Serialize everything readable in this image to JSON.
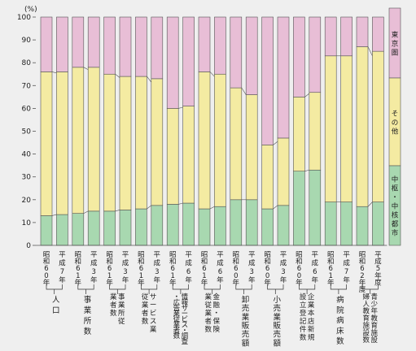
{
  "chart_data": {
    "type": "bar",
    "stacked": true,
    "percent": true,
    "unit_label": "(%)",
    "yticks": [
      0,
      10,
      20,
      30,
      40,
      50,
      60,
      70,
      80,
      90,
      100
    ],
    "ylim": [
      0,
      100
    ],
    "colors": {
      "中枢・中核都市": "#a8d8b0",
      "その他": "#f4eba2",
      "東京圏": "#e8bed6"
    },
    "bars": [
      {
        "label": "昭和60年",
        "values": [
          13,
          63,
          24
        ]
      },
      {
        "label": "平成7年",
        "values": [
          13.5,
          62.5,
          24
        ]
      },
      {
        "label": "昭和61年",
        "values": [
          14,
          64,
          22
        ]
      },
      {
        "label": "平成3年",
        "values": [
          15,
          63,
          22
        ]
      },
      {
        "label": "昭和61年",
        "values": [
          15,
          60,
          25
        ]
      },
      {
        "label": "平成3年",
        "values": [
          15.5,
          58.5,
          26
        ]
      },
      {
        "label": "昭和61年",
        "values": [
          16,
          58,
          26
        ]
      },
      {
        "label": "平成3年",
        "values": [
          17.5,
          55.5,
          27
        ]
      },
      {
        "label": "昭和61年",
        "values": [
          18,
          42,
          40
        ]
      },
      {
        "label": "平成6年",
        "values": [
          18.5,
          42.5,
          39
        ]
      },
      {
        "label": "昭和61年",
        "values": [
          16,
          60,
          24
        ]
      },
      {
        "label": "平成6年",
        "values": [
          17,
          58,
          25
        ]
      },
      {
        "label": "昭和60年",
        "values": [
          20,
          49,
          31
        ]
      },
      {
        "label": "平成3年",
        "values": [
          20,
          46,
          34
        ]
      },
      {
        "label": "昭和60年",
        "values": [
          16,
          28,
          56
        ]
      },
      {
        "label": "平成3年",
        "values": [
          17.5,
          29.5,
          53
        ]
      },
      {
        "label": "昭和60年",
        "values": [
          32.5,
          32.5,
          35
        ]
      },
      {
        "label": "平成6年",
        "values": [
          33,
          34,
          33
        ]
      },
      {
        "label": "昭和61年",
        "values": [
          19,
          64,
          17
        ]
      },
      {
        "label": "平成7年",
        "values": [
          19,
          64,
          17
        ]
      },
      {
        "label": "昭和62年度",
        "values": [
          17,
          70,
          13
        ]
      },
      {
        "label": "平成5年度",
        "values": [
          19,
          66,
          15
        ]
      }
    ],
    "groups": [
      {
        "label": "人口",
        "bars": [
          0,
          1
        ]
      },
      {
        "label": "事業所数",
        "bars": [
          2,
          3
        ]
      },
      {
        "label": "事業所従業者数",
        "bars": [
          4,
          5
        ]
      },
      {
        "label": "サービス業従業者数",
        "bars": [
          6,
          7
        ]
      },
      {
        "label": "情報サービス・調査・広告業従業者数",
        "bars": [
          8,
          9
        ]
      },
      {
        "label": "金融・保険業従業者数",
        "bars": [
          10,
          11
        ]
      },
      {
        "label": "卸売業販売額",
        "bars": [
          12,
          13
        ]
      },
      {
        "label": "小売業販売額",
        "bars": [
          14,
          15
        ]
      },
      {
        "label": "企業本店新規設立登記件数",
        "bars": [
          16,
          17
        ]
      },
      {
        "label": "病院病床数",
        "bars": [
          18,
          19
        ]
      },
      {
        "label": "青少年教育施設婦人教育施設数",
        "bars": [
          20,
          21
        ]
      }
    ],
    "legend": [
      {
        "label": "東京圏",
        "color": "#e8bed6"
      },
      {
        "label": "その他",
        "color": "#f4eba2"
      },
      {
        "label": "中枢・中核都市",
        "color": "#a8d8b0"
      }
    ],
    "legend_placement": "right"
  }
}
